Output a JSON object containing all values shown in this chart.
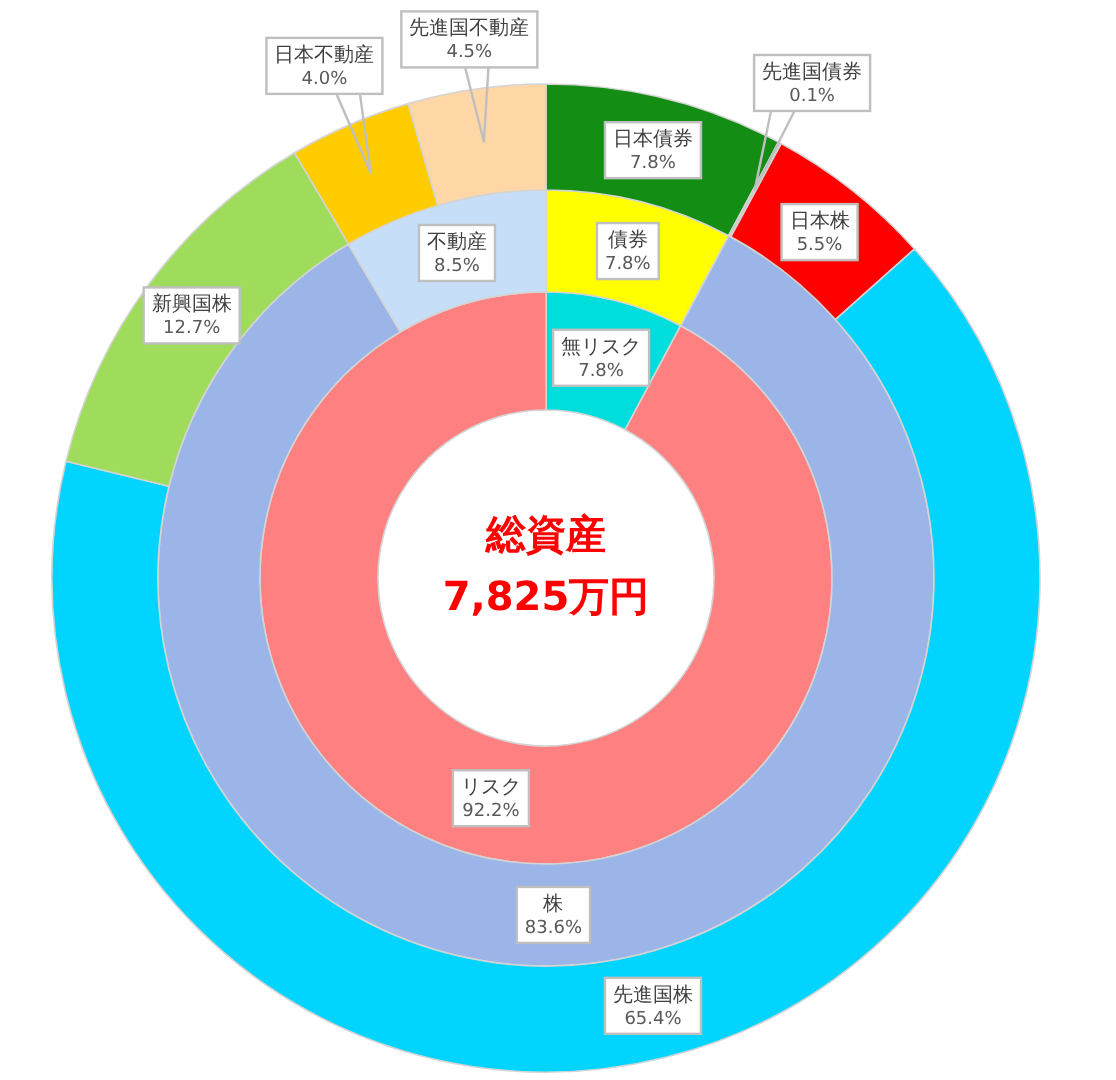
{
  "chart_data": [
    {
      "type": "donut",
      "title": "総資産",
      "subtitle": "7,825万円",
      "categories": [
        "無リスク",
        "リスク"
      ],
      "values": [
        7.8,
        92.2
      ],
      "colors": [
        "#00DDDD",
        "#FF8080"
      ],
      "value_labels": [
        "7.8%",
        "92.2%"
      ]
    },
    {
      "type": "donut",
      "categories": [
        "債券",
        "株",
        "不動産"
      ],
      "values": [
        7.8,
        83.6,
        8.5
      ],
      "colors": [
        "#FFFF00",
        "#9BB5E8",
        "#C6DEF8"
      ],
      "value_labels": [
        "7.8%",
        "83.6%",
        "8.5%"
      ]
    },
    {
      "type": "donut",
      "categories": [
        "日本債券",
        "先進国債券",
        "日本株",
        "先進国株",
        "新興国株",
        "日本不動産",
        "先進国不動産"
      ],
      "values": [
        7.8,
        0.1,
        5.5,
        65.4,
        12.7,
        4.0,
        4.5
      ],
      "colors": [
        "#138D13",
        "#C8C8C8",
        "#FF0000",
        "#00D4FF",
        "#A0DC5C",
        "#FFCC00",
        "#FFD7A6"
      ],
      "value_labels": [
        "7.8%",
        "0.1%",
        "5.5%",
        "65.4%",
        "12.7%",
        "4.0%",
        "4.5%"
      ]
    }
  ]
}
